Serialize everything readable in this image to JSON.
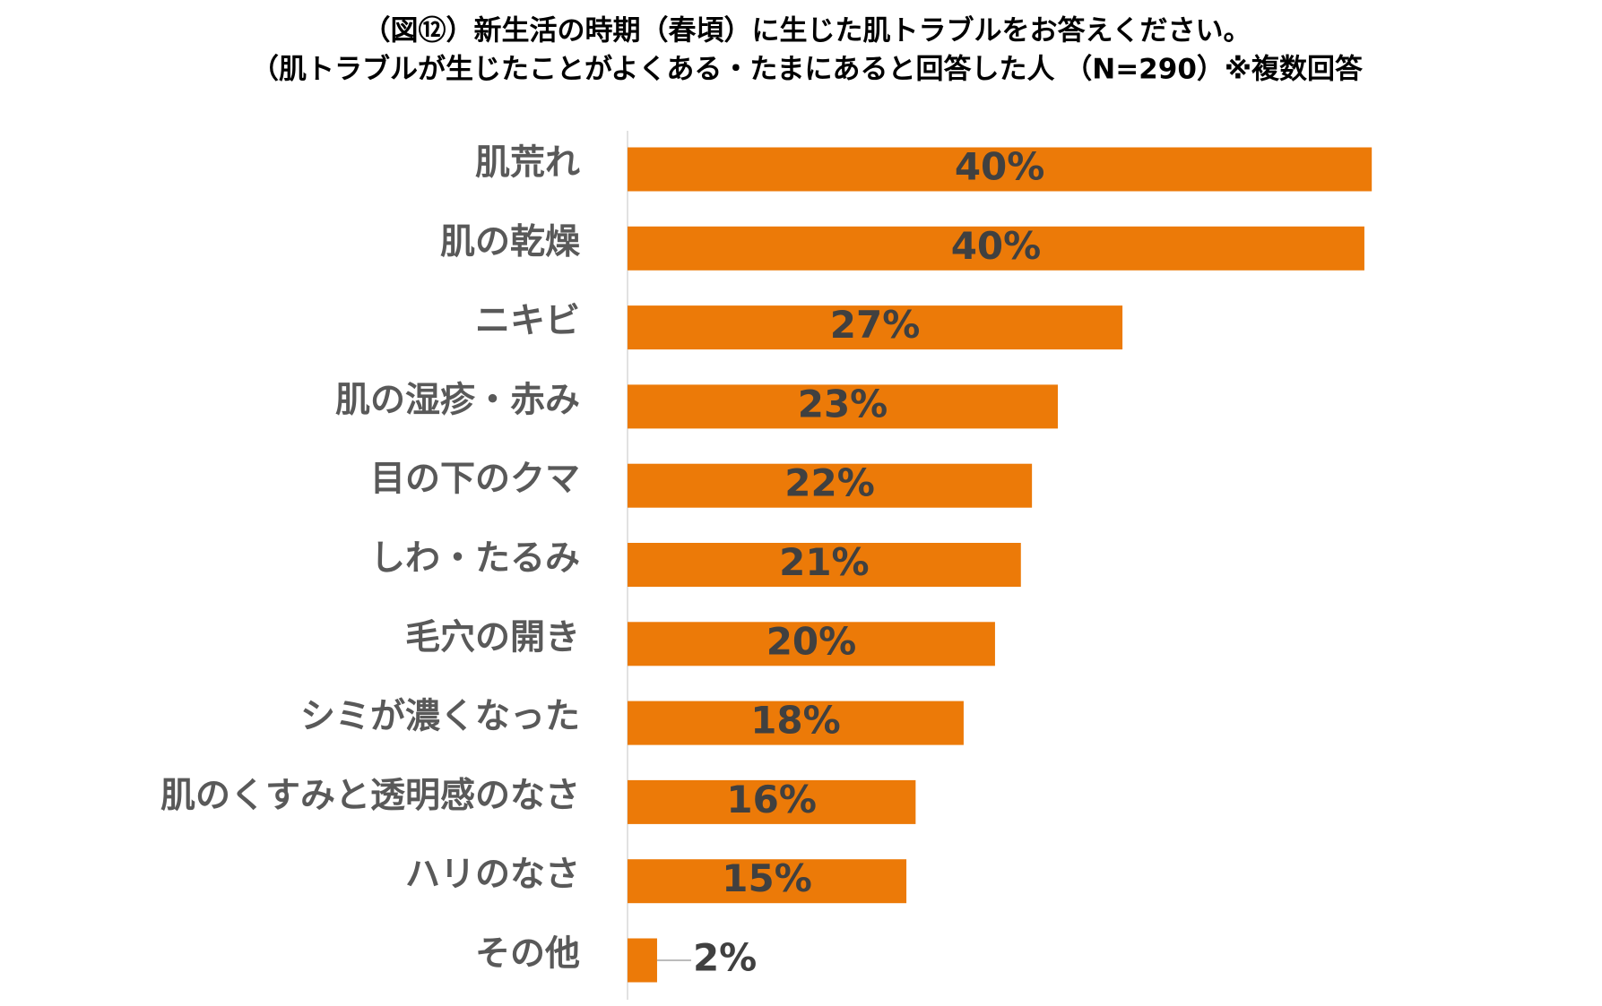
{
  "chart_data": {
    "type": "bar",
    "orientation": "horizontal",
    "title": "（図⑫）新生活の時期（春頃）に生じた肌トラブルをお答えください。",
    "subtitle": "（肌トラブルが生じたことがよくある・たまにあると回答した人 （N=290）※複数回答",
    "categories": [
      "肌荒れ",
      "肌の乾燥",
      "ニキビ",
      "肌の湿疹・赤み",
      "目の下のクマ",
      "しわ・たるみ",
      "毛穴の開き",
      "シミが濃くなった",
      "肌のくすみと透明感のなさ",
      "ハリのなさ",
      "その他"
    ],
    "values": [
      40.3,
      39.9,
      26.8,
      23.3,
      21.9,
      21.3,
      19.9,
      18.2,
      15.6,
      15.1,
      1.6
    ],
    "value_labels": [
      "40%",
      "40%",
      "27%",
      "23%",
      "22%",
      "21%",
      "20%",
      "18%",
      "16%",
      "15%",
      "2%"
    ],
    "color": "#EC7A08"
  }
}
